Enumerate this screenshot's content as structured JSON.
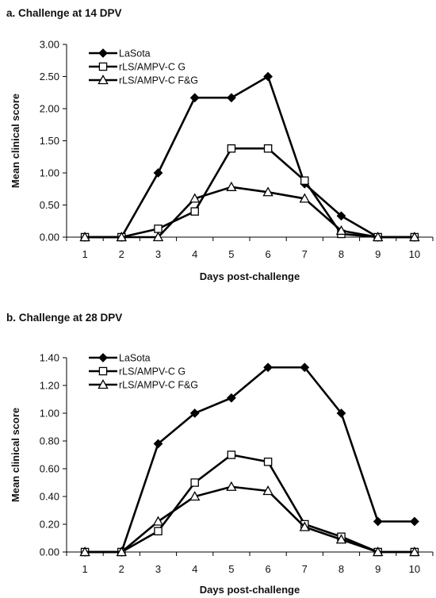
{
  "chart_data": [
    {
      "panel_title": "a. Challenge at 14 DPV",
      "type": "line",
      "xlabel": "Days post-challenge",
      "ylabel": "Mean clinical score",
      "x": [
        1,
        2,
        3,
        4,
        5,
        6,
        7,
        8,
        9,
        10
      ],
      "xticks": [
        "1",
        "2",
        "3",
        "4",
        "5",
        "6",
        "7",
        "8",
        "9",
        "10"
      ],
      "yticks": [
        "0.00",
        "0.50",
        "1.00",
        "1.50",
        "2.00",
        "2.50",
        "3.00"
      ],
      "ylim": [
        0,
        3.0
      ],
      "legend_position": "top-left",
      "grid": false,
      "series": [
        {
          "name": "LaSota",
          "marker": "diamond-filled",
          "values": [
            0,
            0,
            1.0,
            2.17,
            2.17,
            2.5,
            0.83,
            0.33,
            0,
            0
          ]
        },
        {
          "name": "rLS/AMPV-C G",
          "marker": "square-open",
          "values": [
            0,
            0,
            0.13,
            0.4,
            1.38,
            1.38,
            0.88,
            0.05,
            0,
            0
          ]
        },
        {
          "name": "rLS/AMPV-C F&G",
          "marker": "triangle-open",
          "values": [
            0,
            0,
            0,
            0.6,
            0.78,
            0.7,
            0.6,
            0.1,
            0,
            0
          ]
        }
      ]
    },
    {
      "panel_title": "b. Challenge at 28 DPV",
      "type": "line",
      "xlabel": "Days post-challenge",
      "ylabel": "Mean clinical score",
      "x": [
        1,
        2,
        3,
        4,
        5,
        6,
        7,
        8,
        9,
        10
      ],
      "xticks": [
        "1",
        "2",
        "3",
        "4",
        "5",
        "6",
        "7",
        "8",
        "9",
        "10"
      ],
      "yticks": [
        "0.00",
        "0.20",
        "0.40",
        "0.60",
        "0.80",
        "1.00",
        "1.20",
        "1.40"
      ],
      "ylim": [
        0,
        1.4
      ],
      "legend_position": "top-left",
      "grid": false,
      "series": [
        {
          "name": "LaSota",
          "marker": "diamond-filled",
          "values": [
            0,
            0,
            0.78,
            1.0,
            1.11,
            1.33,
            1.33,
            1.0,
            0.22,
            0.22
          ]
        },
        {
          "name": "rLS/AMPV-C G",
          "marker": "square-open",
          "values": [
            0,
            0,
            0.15,
            0.5,
            0.7,
            0.65,
            0.2,
            0.11,
            0,
            0
          ]
        },
        {
          "name": "rLS/AMPV-C F&G",
          "marker": "triangle-open",
          "values": [
            0,
            0,
            0.22,
            0.4,
            0.47,
            0.44,
            0.18,
            0.09,
            0,
            0
          ]
        }
      ]
    }
  ]
}
